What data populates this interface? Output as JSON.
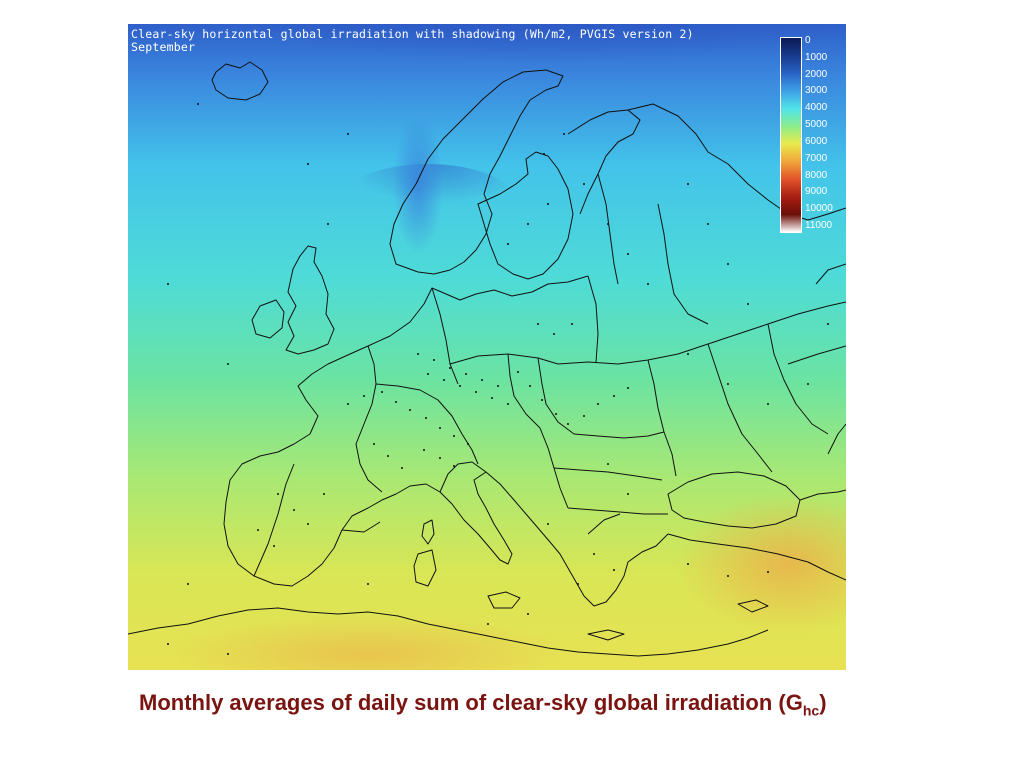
{
  "map": {
    "title": "Clear-sky horizontal global irradiation with shadowing (Wh/m2, PVGIS version 2)",
    "subtitle": "September",
    "legend": {
      "labels": [
        "0",
        "1000",
        "2000",
        "3000",
        "4000",
        "5000",
        "6000",
        "7000",
        "8000",
        "9000",
        "10000",
        "11000"
      ],
      "colors": [
        "#0b1a55",
        "#173a8c",
        "#2a63c6",
        "#3ea0e6",
        "#4fe3e8",
        "#8bed8c",
        "#e8ea4c",
        "#f0a63b",
        "#e1542a",
        "#a81f14",
        "#6b0d08",
        "#ffffff"
      ]
    }
  },
  "caption": {
    "main": "Monthly averages of daily sum of clear-sky global irradiation (",
    "symbol": "G",
    "subscript": "hc",
    "close": ")"
  }
}
